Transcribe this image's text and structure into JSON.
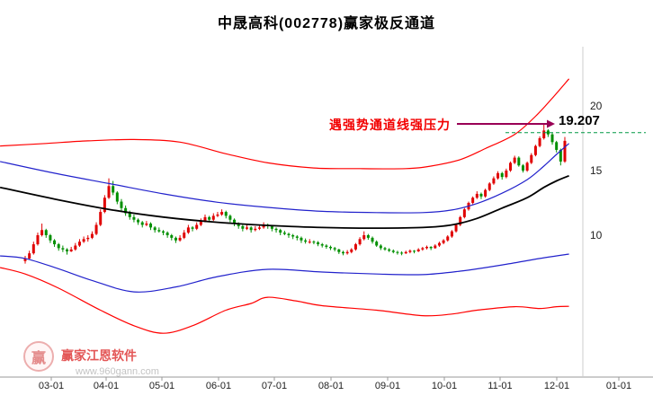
{
  "title": "中晟高科(002778)赢家极反通道",
  "watermark": {
    "logo_char": "赢",
    "brand": "赢家江恩软件",
    "url": "www.960gann.com"
  },
  "colors": {
    "up": "#e00000",
    "down": "#008f00",
    "outer_line": "#ff0000",
    "inner_line": "#2222cc",
    "middle_line": "#000000",
    "resistance_dash": "#009944",
    "annotation": "#f20000",
    "arrow": "#990055",
    "axis": "#999999",
    "axis_text": "#222222"
  },
  "chart_data": {
    "type": "candlestick",
    "title": "中晟高科(002778)赢家极反通道",
    "ylim": [
      2,
      22
    ],
    "grid": false,
    "y_ticks": [
      {
        "label": "20",
        "price": 20
      },
      {
        "label": "15",
        "price": 15
      },
      {
        "label": "10",
        "price": 10
      }
    ],
    "x_ticks": [
      "03-01",
      "04-01",
      "05-01",
      "06-01",
      "07-01",
      "08-01",
      "09-01",
      "10-01",
      "11-01",
      "12-01",
      "01-01"
    ],
    "resistance": {
      "text": "遇强势通道线强压力",
      "value_label": "19.207",
      "value": 19.207,
      "line_price": 17.93
    },
    "candles": [
      [
        8.0,
        8.4,
        7.8,
        8.2
      ],
      [
        8.2,
        8.8,
        8.1,
        8.6
      ],
      [
        8.6,
        9.5,
        8.5,
        9.3
      ],
      [
        9.3,
        10.2,
        9.2,
        10.0
      ],
      [
        10.0,
        10.9,
        9.9,
        10.4
      ],
      [
        10.4,
        10.5,
        9.8,
        10.0
      ],
      [
        10.0,
        10.1,
        9.4,
        9.6
      ],
      [
        9.6,
        9.7,
        9.1,
        9.3
      ],
      [
        9.3,
        9.4,
        8.8,
        9.0
      ],
      [
        9.0,
        9.2,
        8.7,
        8.9
      ],
      [
        8.9,
        9.0,
        8.5,
        8.75
      ],
      [
        8.75,
        9.1,
        8.7,
        8.9
      ],
      [
        8.9,
        9.4,
        8.8,
        9.2
      ],
      [
        9.2,
        9.7,
        9.1,
        9.5
      ],
      [
        9.5,
        9.9,
        9.4,
        9.7
      ],
      [
        9.7,
        10.0,
        9.5,
        9.8
      ],
      [
        9.8,
        10.3,
        9.7,
        10.1
      ],
      [
        10.1,
        11.0,
        10.0,
        10.8
      ],
      [
        10.8,
        12.0,
        10.7,
        11.8
      ],
      [
        11.8,
        13.1,
        11.7,
        12.9
      ],
      [
        12.9,
        14.4,
        12.8,
        13.8
      ],
      [
        13.8,
        14.2,
        13.1,
        13.3
      ],
      [
        13.3,
        13.4,
        12.4,
        12.6
      ],
      [
        12.6,
        12.8,
        11.9,
        12.1
      ],
      [
        12.1,
        12.3,
        11.5,
        11.7
      ],
      [
        11.7,
        11.9,
        11.2,
        11.4
      ],
      [
        11.4,
        11.6,
        11.0,
        11.2
      ],
      [
        11.2,
        11.3,
        10.8,
        11.0
      ],
      [
        11.0,
        11.1,
        10.6,
        10.8
      ],
      [
        10.8,
        11.1,
        10.7,
        10.9
      ],
      [
        10.9,
        11.0,
        10.4,
        10.6
      ],
      [
        10.6,
        10.7,
        10.2,
        10.4
      ],
      [
        10.4,
        10.6,
        10.2,
        10.3
      ],
      [
        10.3,
        10.4,
        10.0,
        10.2
      ],
      [
        10.2,
        10.3,
        9.8,
        10.0
      ],
      [
        10.0,
        10.1,
        9.6,
        9.8
      ],
      [
        9.8,
        9.9,
        9.4,
        9.6
      ],
      [
        9.6,
        10.0,
        9.5,
        9.8
      ],
      [
        9.8,
        10.4,
        9.7,
        10.2
      ],
      [
        10.2,
        10.8,
        10.1,
        10.6
      ],
      [
        10.6,
        10.7,
        10.3,
        10.5
      ],
      [
        10.5,
        11.0,
        10.4,
        10.8
      ],
      [
        10.8,
        11.3,
        10.7,
        11.1
      ],
      [
        11.1,
        11.6,
        11.0,
        11.4
      ],
      [
        11.4,
        11.5,
        11.0,
        11.2
      ],
      [
        11.2,
        11.7,
        11.1,
        11.5
      ],
      [
        11.5,
        11.8,
        11.4,
        11.6
      ],
      [
        11.6,
        12.0,
        11.5,
        11.8
      ],
      [
        11.8,
        11.9,
        11.3,
        11.5
      ],
      [
        11.5,
        11.6,
        11.0,
        11.2
      ],
      [
        11.2,
        11.3,
        10.7,
        10.9
      ],
      [
        10.9,
        11.0,
        10.5,
        10.7
      ],
      [
        10.7,
        10.8,
        10.3,
        10.5
      ],
      [
        10.5,
        10.8,
        10.4,
        10.6
      ],
      [
        10.6,
        10.7,
        10.2,
        10.4
      ],
      [
        10.4,
        10.7,
        10.3,
        10.5
      ],
      [
        10.5,
        10.8,
        10.4,
        10.6
      ],
      [
        10.6,
        11.0,
        10.5,
        10.8
      ],
      [
        10.8,
        10.9,
        10.5,
        10.7
      ],
      [
        10.7,
        10.8,
        10.3,
        10.5
      ],
      [
        10.5,
        10.6,
        10.2,
        10.4
      ],
      [
        10.4,
        10.5,
        10.0,
        10.2
      ],
      [
        10.2,
        10.35,
        10.0,
        10.1
      ],
      [
        10.1,
        10.2,
        9.8,
        10.0
      ],
      [
        10.0,
        10.1,
        9.7,
        9.9
      ],
      [
        9.9,
        10.0,
        9.6,
        9.8
      ],
      [
        9.8,
        9.9,
        9.4,
        9.6
      ],
      [
        9.6,
        9.75,
        9.35,
        9.5
      ],
      [
        9.5,
        9.7,
        9.35,
        9.5
      ],
      [
        9.5,
        9.6,
        9.3,
        9.45
      ],
      [
        9.45,
        9.55,
        9.15,
        9.3
      ],
      [
        9.3,
        9.4,
        9.05,
        9.2
      ],
      [
        9.2,
        9.3,
        8.95,
        9.1
      ],
      [
        9.1,
        9.2,
        8.85,
        9.0
      ],
      [
        9.0,
        9.1,
        8.75,
        8.9
      ],
      [
        8.9,
        8.95,
        8.55,
        8.7
      ],
      [
        8.7,
        8.8,
        8.45,
        8.6
      ],
      [
        8.6,
        8.85,
        8.5,
        8.7
      ],
      [
        8.7,
        9.0,
        8.6,
        8.9
      ],
      [
        8.9,
        9.4,
        8.8,
        9.3
      ],
      [
        9.3,
        9.85,
        9.2,
        9.7
      ],
      [
        9.7,
        10.3,
        9.6,
        10.0
      ],
      [
        10.0,
        10.1,
        9.65,
        9.8
      ],
      [
        9.8,
        9.9,
        9.35,
        9.5
      ],
      [
        9.5,
        9.6,
        9.1,
        9.2
      ],
      [
        9.2,
        9.3,
        8.85,
        9.0
      ],
      [
        9.0,
        9.1,
        8.8,
        8.9
      ],
      [
        8.9,
        9.0,
        8.7,
        8.8
      ],
      [
        8.8,
        8.9,
        8.6,
        8.7
      ],
      [
        8.7,
        8.8,
        8.5,
        8.65
      ],
      [
        8.65,
        8.75,
        8.45,
        8.6
      ],
      [
        8.6,
        8.8,
        8.55,
        8.7
      ],
      [
        8.7,
        8.9,
        8.6,
        8.8
      ],
      [
        8.8,
        8.85,
        8.6,
        8.75
      ],
      [
        8.75,
        9.0,
        8.7,
        8.9
      ],
      [
        8.9,
        9.1,
        8.8,
        9.0
      ],
      [
        9.0,
        9.2,
        8.9,
        9.1
      ],
      [
        9.1,
        9.15,
        8.85,
        9.0
      ],
      [
        9.0,
        9.3,
        8.95,
        9.2
      ],
      [
        9.2,
        9.5,
        9.1,
        9.4
      ],
      [
        9.4,
        9.7,
        9.3,
        9.6
      ],
      [
        9.6,
        10.0,
        9.5,
        9.9
      ],
      [
        9.9,
        10.4,
        9.8,
        10.3
      ],
      [
        10.3,
        10.9,
        10.2,
        10.8
      ],
      [
        10.8,
        11.5,
        10.7,
        11.4
      ],
      [
        11.4,
        12.1,
        11.3,
        12.0
      ],
      [
        12.0,
        12.6,
        11.9,
        12.5
      ],
      [
        12.5,
        13.0,
        12.4,
        12.9
      ],
      [
        12.9,
        13.4,
        12.8,
        13.2
      ],
      [
        13.2,
        13.3,
        12.8,
        13.0
      ],
      [
        13.0,
        13.6,
        12.9,
        13.5
      ],
      [
        13.5,
        14.1,
        13.4,
        14.0
      ],
      [
        14.0,
        14.55,
        13.9,
        14.4
      ],
      [
        14.4,
        14.95,
        14.3,
        14.8
      ],
      [
        14.8,
        14.9,
        14.3,
        14.5
      ],
      [
        14.5,
        15.15,
        14.4,
        15.0
      ],
      [
        15.0,
        15.7,
        14.9,
        15.6
      ],
      [
        15.6,
        16.15,
        15.5,
        16.0
      ],
      [
        16.0,
        16.1,
        15.3,
        15.4
      ],
      [
        15.4,
        15.5,
        14.85,
        15.0
      ],
      [
        15.0,
        15.7,
        14.9,
        15.6
      ],
      [
        15.6,
        16.35,
        15.5,
        16.2
      ],
      [
        16.2,
        17.0,
        16.1,
        16.9
      ],
      [
        16.9,
        17.65,
        16.8,
        17.5
      ],
      [
        17.5,
        18.6,
        17.4,
        18.1
      ],
      [
        18.1,
        18.2,
        17.6,
        17.8
      ],
      [
        17.8,
        17.9,
        17.0,
        17.2
      ],
      [
        17.2,
        17.3,
        16.4,
        16.6
      ],
      [
        16.6,
        16.7,
        15.4,
        15.7
      ],
      [
        15.7,
        17.6,
        15.6,
        17.3
      ]
    ],
    "lines": [
      {
        "name": "outer-upper",
        "color": "#ff0000",
        "width": 1.2,
        "points": [
          [
            -6,
            16.9
          ],
          [
            5,
            17.1
          ],
          [
            15,
            17.3
          ],
          [
            26,
            17.4
          ],
          [
            37,
            17.2
          ],
          [
            48,
            16.3
          ],
          [
            58,
            15.6
          ],
          [
            69,
            15.2
          ],
          [
            80,
            15.15
          ],
          [
            91,
            15.15
          ],
          [
            97,
            15.35
          ],
          [
            104,
            15.85
          ],
          [
            110,
            16.7
          ],
          [
            117,
            17.8
          ],
          [
            122,
            19.2
          ],
          [
            126,
            20.6
          ],
          [
            130,
            22.1
          ]
        ]
      },
      {
        "name": "inner-upper",
        "color": "#2222cc",
        "width": 1.2,
        "points": [
          [
            -6,
            15.7
          ],
          [
            7,
            14.8
          ],
          [
            20,
            14.0
          ],
          [
            33,
            13.2
          ],
          [
            46,
            12.55
          ],
          [
            58,
            12.15
          ],
          [
            71,
            11.85
          ],
          [
            84,
            11.75
          ],
          [
            95,
            11.75
          ],
          [
            102,
            11.95
          ],
          [
            108,
            12.45
          ],
          [
            114,
            13.25
          ],
          [
            120,
            14.3
          ],
          [
            124,
            15.35
          ],
          [
            127,
            16.25
          ],
          [
            130,
            17.1
          ]
        ]
      },
      {
        "name": "middle",
        "color": "#000000",
        "width": 1.8,
        "points": [
          [
            -6,
            13.7
          ],
          [
            7,
            12.8
          ],
          [
            20,
            12.0
          ],
          [
            33,
            11.4
          ],
          [
            46,
            11.0
          ],
          [
            58,
            10.76
          ],
          [
            71,
            10.6
          ],
          [
            84,
            10.55
          ],
          [
            95,
            10.6
          ],
          [
            102,
            10.8
          ],
          [
            108,
            11.3
          ],
          [
            114,
            12.1
          ],
          [
            120,
            12.9
          ],
          [
            124,
            13.7
          ],
          [
            127,
            14.2
          ],
          [
            130,
            14.6
          ]
        ]
      },
      {
        "name": "inner-lower",
        "color": "#2222cc",
        "width": 1.2,
        "points": [
          [
            -6,
            8.4
          ],
          [
            0,
            8.2
          ],
          [
            8,
            7.4
          ],
          [
            16,
            6.5
          ],
          [
            26,
            5.62
          ],
          [
            36,
            6.0
          ],
          [
            46,
            6.8
          ],
          [
            58,
            7.36
          ],
          [
            71,
            7.15
          ],
          [
            84,
            7.0
          ],
          [
            95,
            6.95
          ],
          [
            104,
            7.22
          ],
          [
            114,
            7.7
          ],
          [
            123,
            8.2
          ],
          [
            130,
            8.54
          ]
        ]
      },
      {
        "name": "outer-lower",
        "color": "#ff0000",
        "width": 1.2,
        "points": [
          [
            -6,
            7.5
          ],
          [
            0,
            7.0
          ],
          [
            8,
            5.9
          ],
          [
            18,
            4.2
          ],
          [
            26,
            3.0
          ],
          [
            33,
            2.42
          ],
          [
            40,
            3.0
          ],
          [
            48,
            4.2
          ],
          [
            54,
            4.72
          ],
          [
            58,
            5.2
          ],
          [
            65,
            4.9
          ],
          [
            71,
            4.55
          ],
          [
            84,
            4.2
          ],
          [
            95,
            3.78
          ],
          [
            102,
            3.9
          ],
          [
            108,
            4.2
          ],
          [
            117,
            4.47
          ],
          [
            123,
            4.33
          ],
          [
            127,
            4.47
          ],
          [
            130,
            4.5
          ]
        ]
      }
    ]
  }
}
